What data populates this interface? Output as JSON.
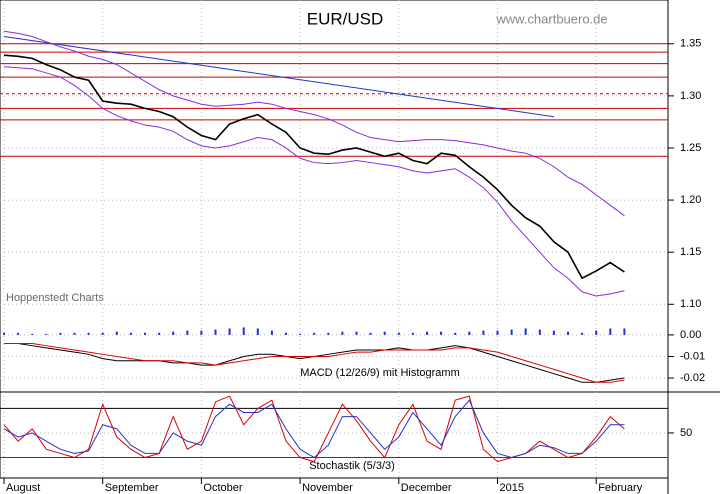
{
  "chart_data": {
    "type": "line",
    "title": "EUR/USD",
    "source": "www.chartbuero.de",
    "credit": "Hoppenstedt Charts",
    "categories": [
      "August",
      null,
      null,
      null,
      null,
      null,
      null,
      "September",
      null,
      null,
      null,
      null,
      null,
      null,
      "October",
      null,
      null,
      null,
      null,
      null,
      null,
      "November",
      null,
      null,
      null,
      null,
      null,
      null,
      "December",
      null,
      null,
      null,
      null,
      null,
      null,
      "2015",
      null,
      null,
      null,
      null,
      null,
      null,
      "February",
      null,
      null
    ],
    "series": [
      {
        "name": "EUR/USD",
        "color": "#000000",
        "values": [
          1.339,
          1.338,
          1.336,
          1.33,
          1.325,
          1.318,
          1.315,
          1.295,
          1.293,
          1.292,
          1.288,
          1.285,
          1.28,
          1.27,
          1.262,
          1.258,
          1.273,
          1.278,
          1.282,
          1.273,
          1.265,
          1.25,
          1.245,
          1.244,
          1.248,
          1.25,
          1.246,
          1.242,
          1.245,
          1.238,
          1.235,
          1.245,
          1.243,
          1.232,
          1.222,
          1.21,
          1.195,
          1.183,
          1.175,
          1.16,
          1.15,
          1.125,
          1.132,
          1.14,
          1.131
        ]
      },
      {
        "name": "Upper band",
        "color": "#8a2be2",
        "values": [
          1.362,
          1.36,
          1.357,
          1.352,
          1.347,
          1.343,
          1.338,
          1.335,
          1.33,
          1.322,
          1.314,
          1.306,
          1.3,
          1.296,
          1.292,
          1.29,
          1.291,
          1.292,
          1.294,
          1.292,
          1.288,
          1.285,
          1.282,
          1.278,
          1.272,
          1.265,
          1.26,
          1.258,
          1.256,
          1.257,
          1.258,
          1.258,
          1.257,
          1.255,
          1.253,
          1.25,
          1.247,
          1.245,
          1.24,
          1.232,
          1.222,
          1.215,
          1.205,
          1.195,
          1.185
        ]
      },
      {
        "name": "Lower band",
        "color": "#8a2be2",
        "values": [
          1.328,
          1.327,
          1.326,
          1.322,
          1.318,
          1.31,
          1.3,
          1.288,
          1.281,
          1.276,
          1.272,
          1.27,
          1.266,
          1.258,
          1.252,
          1.25,
          1.252,
          1.256,
          1.26,
          1.258,
          1.25,
          1.24,
          1.236,
          1.235,
          1.236,
          1.238,
          1.236,
          1.234,
          1.232,
          1.228,
          1.226,
          1.228,
          1.23,
          1.222,
          1.212,
          1.198,
          1.18,
          1.165,
          1.15,
          1.135,
          1.125,
          1.112,
          1.108,
          1.11,
          1.113
        ]
      }
    ],
    "ylim": [
      1.083,
      1.392
    ],
    "yticks": [
      1.35,
      {
        "value": 1.3,
        "label": "1.30"
      },
      1.25,
      {
        "value": 1.2,
        "label": "1.20"
      },
      1.15,
      {
        "value": 1.1,
        "label": "1.10"
      }
    ],
    "levels": [
      1.35,
      1.342,
      1.331,
      1.318,
      1.288,
      1.277,
      1.242
    ],
    "dashed_level": 1.302,
    "level_color": "#cc0000",
    "trendline": {
      "color": "#2233cc",
      "values": [
        1.357,
        1.28
      ]
    },
    "macd": {
      "label": "MACD (12/26/9) mit Histogramm",
      "ylim": [
        -0.0265,
        0.006
      ],
      "yticks": [
        {
          "value": 0,
          "label": "0.00"
        },
        -0.01,
        -0.02
      ],
      "macd": {
        "color": "#000000",
        "values": [
          -0.004,
          -0.004,
          -0.005,
          -0.006,
          -0.007,
          -0.008,
          -0.009,
          -0.011,
          -0.012,
          -0.012,
          -0.012,
          -0.012,
          -0.013,
          -0.013,
          -0.014,
          -0.014,
          -0.012,
          -0.01,
          -0.009,
          -0.009,
          -0.01,
          -0.011,
          -0.01,
          -0.009,
          -0.008,
          -0.007,
          -0.007,
          -0.007,
          -0.006,
          -0.007,
          -0.007,
          -0.006,
          -0.005,
          -0.006,
          -0.008,
          -0.01,
          -0.012,
          -0.014,
          -0.016,
          -0.018,
          -0.02,
          -0.022,
          -0.022,
          -0.021,
          -0.02
        ]
      },
      "signal": {
        "color": "#dd0000",
        "values": [
          -0.004,
          -0.004,
          -0.004,
          -0.005,
          -0.006,
          -0.007,
          -0.008,
          -0.009,
          -0.01,
          -0.011,
          -0.012,
          -0.012,
          -0.012,
          -0.013,
          -0.013,
          -0.014,
          -0.013,
          -0.012,
          -0.011,
          -0.01,
          -0.01,
          -0.01,
          -0.01,
          -0.01,
          -0.009,
          -0.008,
          -0.008,
          -0.007,
          -0.007,
          -0.007,
          -0.007,
          -0.007,
          -0.006,
          -0.006,
          -0.007,
          -0.008,
          -0.01,
          -0.012,
          -0.014,
          -0.016,
          -0.018,
          -0.02,
          -0.022,
          -0.022,
          -0.021
        ]
      },
      "histogram": {
        "color": "#2233cc",
        "values": [
          0.001,
          0.001,
          0.0005,
          0.0005,
          0.001,
          0.001,
          0.001,
          0.001,
          0.0015,
          0.001,
          0.001,
          0.001,
          0.0015,
          0.002,
          0.002,
          0.0025,
          0.003,
          0.0035,
          0.003,
          0.002,
          0.001,
          0.0005,
          0.001,
          0.001,
          0.0015,
          0.0015,
          0.001,
          0.0015,
          0.001,
          0.001,
          0.0015,
          0.0015,
          0.001,
          0.0015,
          0.002,
          0.002,
          0.0025,
          0.003,
          0.0025,
          0.002,
          0.0015,
          0.001,
          0.002,
          0.003,
          0.003
        ]
      }
    },
    "stochastic": {
      "label": "Stochastik (5/3/3)",
      "ylim": [
        -5,
        100
      ],
      "yticks": [
        50
      ],
      "levels": [
        80,
        20
      ],
      "k": {
        "color": "#dd0000",
        "values": [
          60,
          40,
          55,
          30,
          25,
          20,
          30,
          85,
          45,
          30,
          20,
          25,
          70,
          30,
          40,
          88,
          95,
          60,
          80,
          90,
          40,
          20,
          15,
          50,
          85,
          65,
          40,
          20,
          60,
          85,
          40,
          30,
          90,
          95,
          30,
          15,
          20,
          25,
          40,
          30,
          20,
          25,
          45,
          70,
          55
        ]
      },
      "d": {
        "color": "#2233cc",
        "values": [
          55,
          45,
          50,
          40,
          30,
          25,
          28,
          60,
          55,
          35,
          25,
          25,
          50,
          40,
          35,
          70,
          85,
          75,
          75,
          85,
          55,
          30,
          20,
          35,
          70,
          70,
          50,
          30,
          45,
          75,
          55,
          35,
          70,
          90,
          50,
          25,
          20,
          25,
          35,
          32,
          25,
          25,
          40,
          60,
          60
        ]
      }
    }
  }
}
